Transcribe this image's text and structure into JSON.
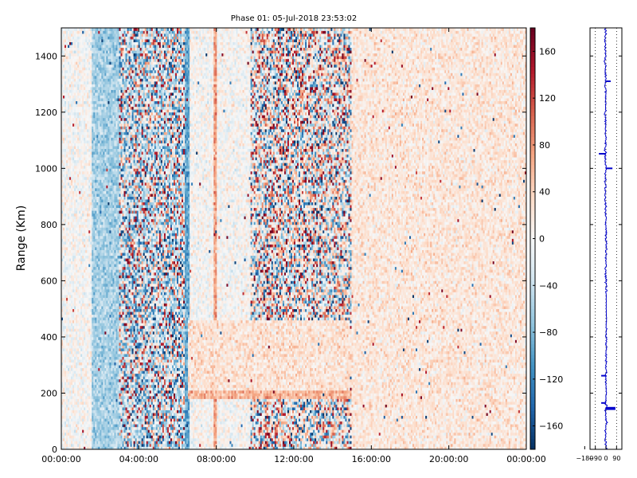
{
  "chart_data": [
    {
      "type": "heatmap",
      "title": "Phase 01: 05-Jul-2018 23:53:02",
      "xlabel": "",
      "ylabel": "Range (Km)",
      "x_tick_labels": [
        "00:00:00",
        "04:00:00",
        "08:00:00",
        "12:00:00",
        "16:00:00",
        "20:00:00",
        "00:00:00"
      ],
      "x_tick_hours": [
        0,
        4,
        8,
        12,
        16,
        20,
        24
      ],
      "xlim_hours": [
        0,
        24
      ],
      "y_ticks": [
        0,
        200,
        400,
        600,
        800,
        1000,
        1200,
        1400
      ],
      "ylim": [
        0,
        1500
      ],
      "colorbar": {
        "ticks": [
          -160,
          -120,
          -80,
          -40,
          0,
          40,
          80,
          120,
          160
        ],
        "range": [
          -180,
          180
        ],
        "colormap": "RdBu_r",
        "colors": [
          "#053061",
          "#2166ac",
          "#4393c3",
          "#92c5de",
          "#d1e5f0",
          "#f7f7f7",
          "#fddbc7",
          "#f4a582",
          "#d6604d",
          "#b2182b",
          "#67001f"
        ]
      },
      "features": [
        {
          "x_hours": [
            1.6,
            3.0
          ],
          "range_km": [
            0,
            1500
          ],
          "level": -60
        },
        {
          "x_hours": [
            3.0,
            6.4
          ],
          "range_km": [
            0,
            1500
          ],
          "level": -30,
          "mixed": true
        },
        {
          "x_hours": [
            6.4,
            6.6
          ],
          "range_km": [
            0,
            1500
          ],
          "level": -95
        },
        {
          "x_hours": [
            7.9,
            8.0
          ],
          "range_km": [
            0,
            1500
          ],
          "level": 75
        },
        {
          "x_hours": [
            9.8,
            15.0
          ],
          "range_km": [
            0,
            1500
          ],
          "level": 0,
          "mixed": true
        },
        {
          "x_hours": [
            6.5,
            17.0
          ],
          "range_km": [
            180,
            215
          ],
          "level": 60
        },
        {
          "x_hours": [
            6.5,
            24.0
          ],
          "range_km": [
            215,
            460
          ],
          "level": 25
        },
        {
          "x_hours": [
            15.0,
            24.0
          ],
          "range_km": [
            0,
            1500
          ],
          "level": 20
        }
      ]
    },
    {
      "type": "line",
      "x_tick_labels": [
        "−180",
        "−90",
        "0",
        "90"
      ],
      "x_ticks": [
        -180,
        -90,
        0,
        90
      ],
      "xlim": [
        -135,
        135
      ],
      "ylim": [
        0,
        1500
      ],
      "grid": true,
      "series_color": "#0000cc",
      "profile_points": [
        [
          2,
          0
        ],
        [
          -4,
          50
        ],
        [
          3,
          100
        ],
        [
          -5,
          140
        ],
        [
          4,
          150
        ],
        [
          -2,
          165
        ],
        [
          0,
          200
        ],
        [
          -3,
          250
        ],
        [
          2,
          262
        ],
        [
          3,
          300
        ],
        [
          2,
          350
        ],
        [
          3,
          400
        ],
        [
          5,
          450
        ],
        [
          3,
          500
        ],
        [
          2,
          550
        ],
        [
          0,
          600
        ],
        [
          -2,
          650
        ],
        [
          1,
          700
        ],
        [
          2,
          750
        ],
        [
          0,
          800
        ],
        [
          -4,
          850
        ],
        [
          -5,
          900
        ],
        [
          -6,
          950
        ],
        [
          -4,
          1000
        ],
        [
          -6,
          1050
        ],
        [
          -3,
          1100
        ],
        [
          -4,
          1150
        ],
        [
          -5,
          1200
        ],
        [
          -2,
          1250
        ],
        [
          -5,
          1300
        ],
        [
          -3,
          1350
        ],
        [
          -7,
          1400
        ],
        [
          -4,
          1450
        ],
        [
          -5,
          1500
        ]
      ],
      "spikes": [
        {
          "range_km": 148,
          "value": 80
        },
        {
          "range_km": 143,
          "value": 80
        },
        {
          "range_km": 165,
          "value": -40
        },
        {
          "range_km": 262,
          "value": -40
        },
        {
          "range_km": 1052,
          "value": -60
        },
        {
          "range_km": 1000,
          "value": 55
        },
        {
          "range_km": 1310,
          "value": 40
        }
      ]
    }
  ]
}
